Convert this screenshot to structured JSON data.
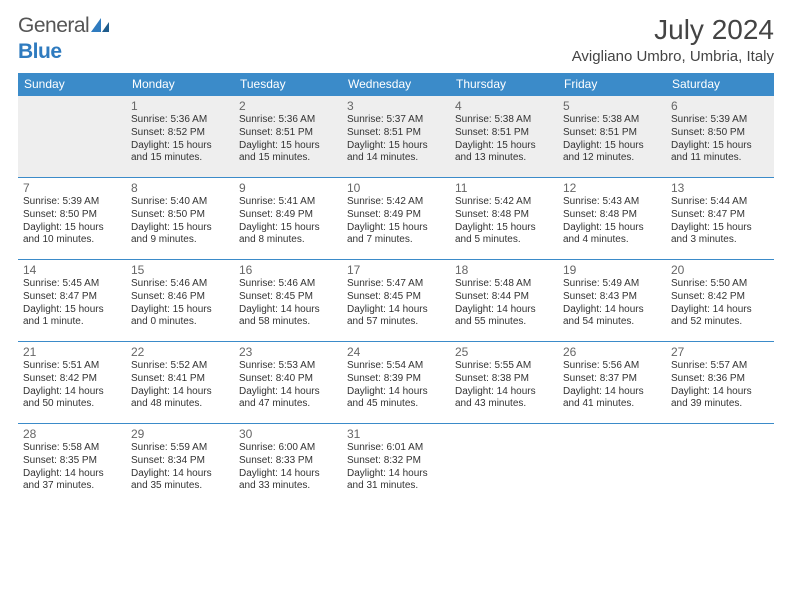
{
  "brand": {
    "part1": "General",
    "part2": "Blue"
  },
  "title": "July 2024",
  "location": "Avigliano Umbro, Umbria, Italy",
  "colors": {
    "header_bg": "#3b8bc9",
    "header_text": "#ffffff",
    "cell_border": "#3b8bc9",
    "first_row_bg": "#eeeeee",
    "text": "#333333",
    "brand_gray": "#555555",
    "brand_blue": "#2f7bbf"
  },
  "dayHeaders": [
    "Sunday",
    "Monday",
    "Tuesday",
    "Wednesday",
    "Thursday",
    "Friday",
    "Saturday"
  ],
  "weeks": [
    [
      null,
      {
        "n": "1",
        "sr": "5:36 AM",
        "ss": "8:52 PM",
        "dl": "15 hours and 15 minutes."
      },
      {
        "n": "2",
        "sr": "5:36 AM",
        "ss": "8:51 PM",
        "dl": "15 hours and 15 minutes."
      },
      {
        "n": "3",
        "sr": "5:37 AM",
        "ss": "8:51 PM",
        "dl": "15 hours and 14 minutes."
      },
      {
        "n": "4",
        "sr": "5:38 AM",
        "ss": "8:51 PM",
        "dl": "15 hours and 13 minutes."
      },
      {
        "n": "5",
        "sr": "5:38 AM",
        "ss": "8:51 PM",
        "dl": "15 hours and 12 minutes."
      },
      {
        "n": "6",
        "sr": "5:39 AM",
        "ss": "8:50 PM",
        "dl": "15 hours and 11 minutes."
      }
    ],
    [
      {
        "n": "7",
        "sr": "5:39 AM",
        "ss": "8:50 PM",
        "dl": "15 hours and 10 minutes."
      },
      {
        "n": "8",
        "sr": "5:40 AM",
        "ss": "8:50 PM",
        "dl": "15 hours and 9 minutes."
      },
      {
        "n": "9",
        "sr": "5:41 AM",
        "ss": "8:49 PM",
        "dl": "15 hours and 8 minutes."
      },
      {
        "n": "10",
        "sr": "5:42 AM",
        "ss": "8:49 PM",
        "dl": "15 hours and 7 minutes."
      },
      {
        "n": "11",
        "sr": "5:42 AM",
        "ss": "8:48 PM",
        "dl": "15 hours and 5 minutes."
      },
      {
        "n": "12",
        "sr": "5:43 AM",
        "ss": "8:48 PM",
        "dl": "15 hours and 4 minutes."
      },
      {
        "n": "13",
        "sr": "5:44 AM",
        "ss": "8:47 PM",
        "dl": "15 hours and 3 minutes."
      }
    ],
    [
      {
        "n": "14",
        "sr": "5:45 AM",
        "ss": "8:47 PM",
        "dl": "15 hours and 1 minute."
      },
      {
        "n": "15",
        "sr": "5:46 AM",
        "ss": "8:46 PM",
        "dl": "15 hours and 0 minutes."
      },
      {
        "n": "16",
        "sr": "5:46 AM",
        "ss": "8:45 PM",
        "dl": "14 hours and 58 minutes."
      },
      {
        "n": "17",
        "sr": "5:47 AM",
        "ss": "8:45 PM",
        "dl": "14 hours and 57 minutes."
      },
      {
        "n": "18",
        "sr": "5:48 AM",
        "ss": "8:44 PM",
        "dl": "14 hours and 55 minutes."
      },
      {
        "n": "19",
        "sr": "5:49 AM",
        "ss": "8:43 PM",
        "dl": "14 hours and 54 minutes."
      },
      {
        "n": "20",
        "sr": "5:50 AM",
        "ss": "8:42 PM",
        "dl": "14 hours and 52 minutes."
      }
    ],
    [
      {
        "n": "21",
        "sr": "5:51 AM",
        "ss": "8:42 PM",
        "dl": "14 hours and 50 minutes."
      },
      {
        "n": "22",
        "sr": "5:52 AM",
        "ss": "8:41 PM",
        "dl": "14 hours and 48 minutes."
      },
      {
        "n": "23",
        "sr": "5:53 AM",
        "ss": "8:40 PM",
        "dl": "14 hours and 47 minutes."
      },
      {
        "n": "24",
        "sr": "5:54 AM",
        "ss": "8:39 PM",
        "dl": "14 hours and 45 minutes."
      },
      {
        "n": "25",
        "sr": "5:55 AM",
        "ss": "8:38 PM",
        "dl": "14 hours and 43 minutes."
      },
      {
        "n": "26",
        "sr": "5:56 AM",
        "ss": "8:37 PM",
        "dl": "14 hours and 41 minutes."
      },
      {
        "n": "27",
        "sr": "5:57 AM",
        "ss": "8:36 PM",
        "dl": "14 hours and 39 minutes."
      }
    ],
    [
      {
        "n": "28",
        "sr": "5:58 AM",
        "ss": "8:35 PM",
        "dl": "14 hours and 37 minutes."
      },
      {
        "n": "29",
        "sr": "5:59 AM",
        "ss": "8:34 PM",
        "dl": "14 hours and 35 minutes."
      },
      {
        "n": "30",
        "sr": "6:00 AM",
        "ss": "8:33 PM",
        "dl": "14 hours and 33 minutes."
      },
      {
        "n": "31",
        "sr": "6:01 AM",
        "ss": "8:32 PM",
        "dl": "14 hours and 31 minutes."
      },
      null,
      null,
      null
    ]
  ],
  "labels": {
    "sunrise": "Sunrise:",
    "sunset": "Sunset:",
    "daylight": "Daylight:"
  }
}
